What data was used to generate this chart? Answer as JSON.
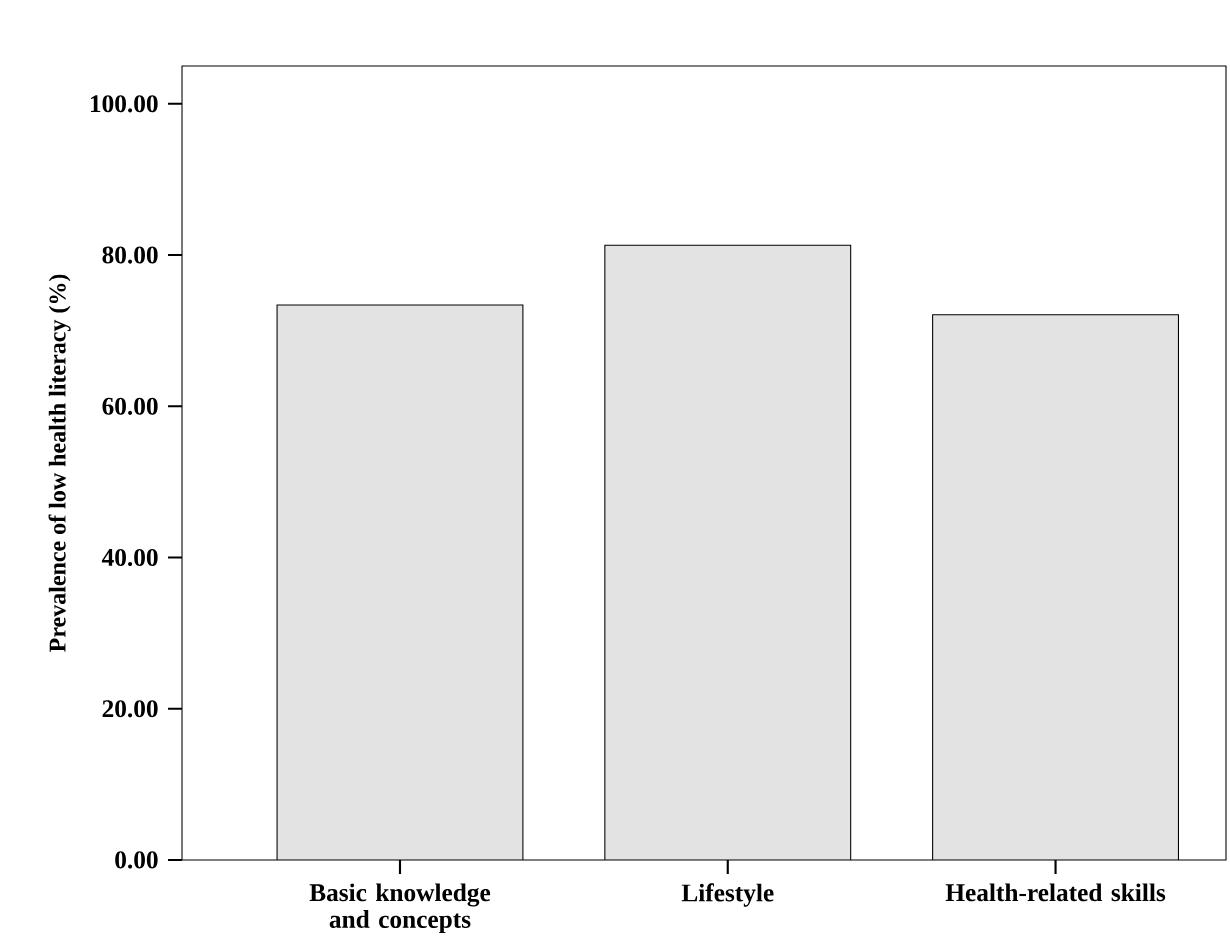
{
  "chart_data": {
    "type": "bar",
    "ylabel": "Prevalence of low health literacy (%)",
    "categories": [
      "Basic knowledge and concepts",
      "Lifestyle",
      "Health-related skills"
    ],
    "values": [
      73.4,
      81.3,
      72.1
    ],
    "color": "#e3e3e3",
    "ylim": [
      0,
      105
    ],
    "yticks": [
      {
        "value": 0,
        "label": "0.00"
      },
      {
        "value": 20,
        "label": "20.00"
      },
      {
        "value": 40,
        "label": "40.00"
      },
      {
        "value": 60,
        "label": "60.00"
      },
      {
        "value": 80,
        "label": "80.00"
      },
      {
        "value": 100,
        "label": "100.00"
      }
    ]
  }
}
